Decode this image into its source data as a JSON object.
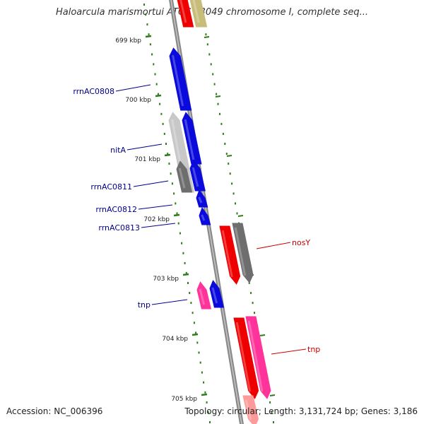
{
  "header": {
    "title": "Haloarcula marismortui ATCC 43049 chromosome I, complete seq..."
  },
  "footer": {
    "accession": "Accession: NC_006396",
    "topology": "Topology: circular; Length: 3,131,724 bp; Genes: 3,186"
  },
  "colors": {
    "backbone": "#8a8a8a",
    "ticks": "#2e7d1a",
    "rrna": "#0a0adc",
    "red_gene": "#ee0000",
    "pink_gene": "#ff3399",
    "grey_gene": "#6e6e6e",
    "light_grey_gene": "#c8c8c8",
    "olive_gene": "#c8bc7a",
    "label_blue": "#00008b",
    "label_red": "#cc0000"
  },
  "scale": {
    "ticks": [
      {
        "label": "699 kbp"
      },
      {
        "label": "700 kbp"
      },
      {
        "label": "701 kbp"
      },
      {
        "label": "702 kbp"
      },
      {
        "label": "703 kbp"
      },
      {
        "label": "704 kbp"
      },
      {
        "label": "705 kbp"
      }
    ]
  },
  "genes": [
    {
      "name": "",
      "strand": "forward",
      "color": "red"
    },
    {
      "name": "",
      "strand": "forward",
      "color": "olive"
    },
    {
      "name": "rrnAC0808",
      "strand": "forward",
      "color": "blue"
    },
    {
      "name": "",
      "strand": "forward",
      "color": "light-grey"
    },
    {
      "name": "nitA",
      "strand": "forward",
      "color": "blue"
    },
    {
      "name": "",
      "strand": "forward",
      "color": "grey"
    },
    {
      "name": "rrnAC0811",
      "strand": "forward",
      "color": "blue"
    },
    {
      "name": "rrnAC0812",
      "strand": "forward",
      "color": "blue"
    },
    {
      "name": "rrnAC0813",
      "strand": "forward",
      "color": "blue"
    },
    {
      "name": "tnp",
      "strand": "forward",
      "color": "pink"
    },
    {
      "name": "",
      "strand": "forward",
      "color": "blue"
    },
    {
      "name": "nosY",
      "strand": "reverse",
      "color": "red"
    },
    {
      "name": "",
      "strand": "reverse",
      "color": "grey"
    },
    {
      "name": "tnp",
      "strand": "reverse",
      "color": "red"
    },
    {
      "name": "",
      "strand": "reverse",
      "color": "pink"
    },
    {
      "name": "",
      "strand": "reverse",
      "color": "light-red"
    }
  ]
}
